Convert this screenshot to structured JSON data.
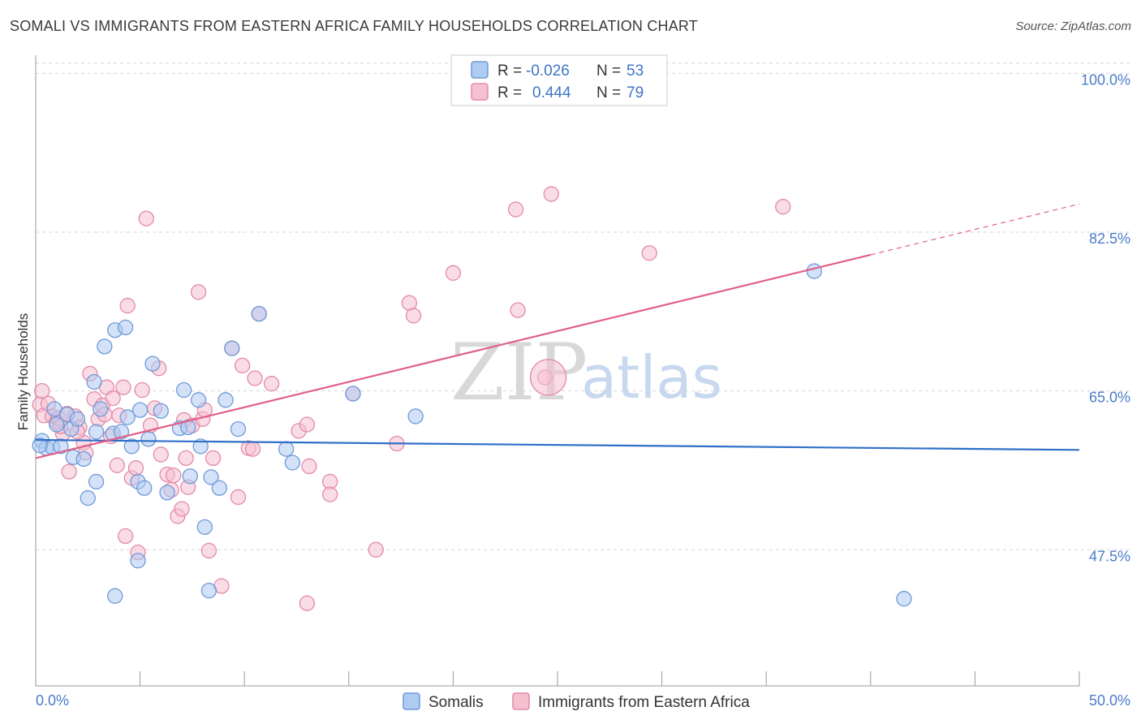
{
  "title": "SOMALI VS IMMIGRANTS FROM EASTERN AFRICA FAMILY HOUSEHOLDS CORRELATION CHART",
  "source": "Source: ZipAtlas.com",
  "watermark": {
    "zip": "ZIP",
    "atlas": "atlas"
  },
  "colors": {
    "blue_fill": "#aecbf2",
    "blue_stroke": "#6f9ad6",
    "blue_line": "#2f6fc8",
    "pink_fill": "#f6c0d1",
    "pink_stroke": "#e28aa8",
    "pink_line": "#e0608a",
    "grid": "#d6d6d6",
    "tick_text": "#4a7cc9"
  },
  "legend": {
    "r_label": "R =",
    "n_label": "N =",
    "rows": [
      {
        "r": "-0.026",
        "n": "53"
      },
      {
        "r": "0.444",
        "n": "79"
      }
    ]
  },
  "chart_data": {
    "type": "scatter",
    "title": "SOMALI VS IMMIGRANTS FROM EASTERN AFRICA FAMILY HOUSEHOLDS CORRELATION CHART",
    "xlabel": "",
    "ylabel": "Family Households",
    "xlim": [
      0,
      50
    ],
    "ylim": [
      32.5,
      102
    ],
    "x_tick_labels": [
      "0.0%",
      "50.0%"
    ],
    "y_ticks": [
      47.5,
      65.0,
      82.5,
      100.0
    ],
    "y_tick_labels": [
      "47.5%",
      "65.0%",
      "82.5%",
      "100.0%"
    ],
    "grid": true,
    "series": [
      {
        "name": "Somalis",
        "r": -0.026,
        "n": 53,
        "trend": {
          "x0": 0,
          "y0": 59.6,
          "x1": 50,
          "y1": 58.5
        },
        "points": [
          [
            0.3,
            59.5
          ],
          [
            0.5,
            58.7
          ],
          [
            0.8,
            58.8
          ],
          [
            0.9,
            63.0
          ],
          [
            1.0,
            61.3
          ],
          [
            1.2,
            58.9
          ],
          [
            1.5,
            62.4
          ],
          [
            1.7,
            60.8
          ],
          [
            1.8,
            57.7
          ],
          [
            2.0,
            61.9
          ],
          [
            2.3,
            57.5
          ],
          [
            2.5,
            53.2
          ],
          [
            2.8,
            66.0
          ],
          [
            2.9,
            55.0
          ],
          [
            3.1,
            63.0
          ],
          [
            3.3,
            69.9
          ],
          [
            3.7,
            60.3
          ],
          [
            3.8,
            71.7
          ],
          [
            4.1,
            60.5
          ],
          [
            4.3,
            72.0
          ],
          [
            4.4,
            62.1
          ],
          [
            4.6,
            58.9
          ],
          [
            4.9,
            55.0
          ],
          [
            5.0,
            62.9
          ],
          [
            5.2,
            54.3
          ],
          [
            5.4,
            59.7
          ],
          [
            5.6,
            68.0
          ],
          [
            6.0,
            62.8
          ],
          [
            6.3,
            53.8
          ],
          [
            6.9,
            60.9
          ],
          [
            7.1,
            65.1
          ],
          [
            7.3,
            61.0
          ],
          [
            7.4,
            55.6
          ],
          [
            7.8,
            64.0
          ],
          [
            7.9,
            58.9
          ],
          [
            8.1,
            50.0
          ],
          [
            8.4,
            55.5
          ],
          [
            8.8,
            54.3
          ],
          [
            9.1,
            64.0
          ],
          [
            9.4,
            69.7
          ],
          [
            9.7,
            60.8
          ],
          [
            10.7,
            73.5
          ],
          [
            12.0,
            58.6
          ],
          [
            12.3,
            57.1
          ],
          [
            15.2,
            64.7
          ],
          [
            18.2,
            62.2
          ],
          [
            37.3,
            78.2
          ],
          [
            41.6,
            42.1
          ],
          [
            3.8,
            42.4
          ],
          [
            4.9,
            46.3
          ],
          [
            8.3,
            43.0
          ],
          [
            0.2,
            59.0
          ],
          [
            2.9,
            60.5
          ]
        ]
      },
      {
        "name": "Immigrants from Eastern Africa",
        "r": 0.444,
        "n": 79,
        "trend": {
          "x0": 0,
          "y0": 57.6,
          "x1": 40,
          "y1": 80.0
        },
        "trend_dashed": {
          "x0": 40,
          "y0": 80.0,
          "x1": 50,
          "y1": 85.6
        },
        "points": [
          [
            0.2,
            63.5
          ],
          [
            0.4,
            62.3
          ],
          [
            0.6,
            63.6
          ],
          [
            0.8,
            62.2
          ],
          [
            1.0,
            61.6
          ],
          [
            1.1,
            62.0
          ],
          [
            1.3,
            60.3
          ],
          [
            1.5,
            62.5
          ],
          [
            1.6,
            56.1
          ],
          [
            1.9,
            62.2
          ],
          [
            2.1,
            61.0
          ],
          [
            2.3,
            59.3
          ],
          [
            2.4,
            58.2
          ],
          [
            2.6,
            66.9
          ],
          [
            2.8,
            64.1
          ],
          [
            3.0,
            61.9
          ],
          [
            3.2,
            63.4
          ],
          [
            3.4,
            65.4
          ],
          [
            3.6,
            60.0
          ],
          [
            3.7,
            64.2
          ],
          [
            3.9,
            56.8
          ],
          [
            4.0,
            62.3
          ],
          [
            4.2,
            65.4
          ],
          [
            4.3,
            49.0
          ],
          [
            4.4,
            74.4
          ],
          [
            4.6,
            55.4
          ],
          [
            4.8,
            56.5
          ],
          [
            4.9,
            47.2
          ],
          [
            5.1,
            65.1
          ],
          [
            5.3,
            84.0
          ],
          [
            5.5,
            61.2
          ],
          [
            5.7,
            63.1
          ],
          [
            5.9,
            67.5
          ],
          [
            6.0,
            58.0
          ],
          [
            6.3,
            55.8
          ],
          [
            6.5,
            54.1
          ],
          [
            6.6,
            55.7
          ],
          [
            6.8,
            51.2
          ],
          [
            7.0,
            52.0
          ],
          [
            7.1,
            61.8
          ],
          [
            7.2,
            57.6
          ],
          [
            7.3,
            54.4
          ],
          [
            7.5,
            61.2
          ],
          [
            7.8,
            75.9
          ],
          [
            8.0,
            61.9
          ],
          [
            8.1,
            62.9
          ],
          [
            8.3,
            47.4
          ],
          [
            8.5,
            57.6
          ],
          [
            8.9,
            43.5
          ],
          [
            9.4,
            69.7
          ],
          [
            9.7,
            53.3
          ],
          [
            9.9,
            67.8
          ],
          [
            10.2,
            58.7
          ],
          [
            10.4,
            58.6
          ],
          [
            10.7,
            73.5
          ],
          [
            10.5,
            66.4
          ],
          [
            11.3,
            65.8
          ],
          [
            12.6,
            60.6
          ],
          [
            13.0,
            61.3
          ],
          [
            13.1,
            56.7
          ],
          [
            13.0,
            41.6
          ],
          [
            14.1,
            55.0
          ],
          [
            14.1,
            53.6
          ],
          [
            15.2,
            64.7
          ],
          [
            16.3,
            47.5
          ],
          [
            17.3,
            59.2
          ],
          [
            17.9,
            74.7
          ],
          [
            18.1,
            73.3
          ],
          [
            20.0,
            78.0
          ],
          [
            23.0,
            85.0
          ],
          [
            23.1,
            73.9
          ],
          [
            24.7,
            86.7
          ],
          [
            29.4,
            80.2
          ],
          [
            35.8,
            85.3
          ],
          [
            24.4,
            66.5
          ],
          [
            0.3,
            65.0
          ],
          [
            2.0,
            60.5
          ],
          [
            1.2,
            61.1
          ],
          [
            3.3,
            62.4
          ]
        ]
      }
    ]
  }
}
